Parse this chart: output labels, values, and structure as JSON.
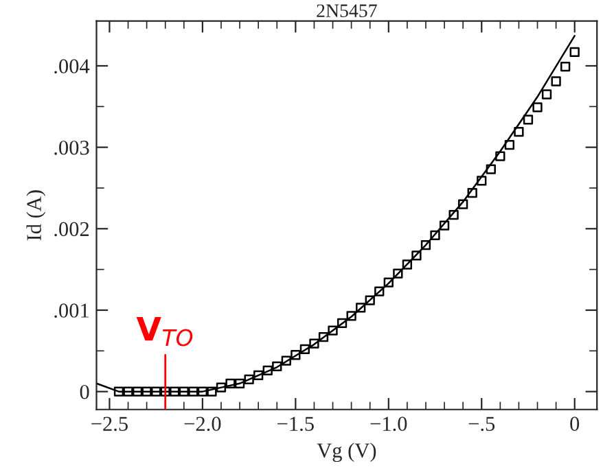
{
  "chart_data": {
    "type": "scatter",
    "title": "2N5457",
    "xlabel": "Vg (V)",
    "ylabel": "Id (A)",
    "xlim": [
      -2.57,
      0.12
    ],
    "ylim": [
      -0.00022,
      0.00455
    ],
    "xticks": [
      {
        "value": -2.5,
        "label": "−2.5"
      },
      {
        "value": -2.0,
        "label": "−2.0"
      },
      {
        "value": -1.5,
        "label": "−1.5"
      },
      {
        "value": -1.0,
        "label": "−1.0"
      },
      {
        "value": -0.5,
        "label": "−.5"
      },
      0
    ],
    "yticks": [
      0,
      {
        "value": 0.001,
        "label": ".001"
      },
      {
        "value": 0.002,
        "label": ".002"
      },
      {
        "value": 0.003,
        "label": ".003"
      },
      {
        "value": 0.004,
        "label": ".004"
      }
    ],
    "grid": false,
    "series": [
      {
        "color": "#000000",
        "marker": "square",
        "x": [
          -2.45,
          -2.4,
          -2.35,
          -2.3,
          -2.25,
          -2.2,
          -2.15,
          -2.1,
          -2.05,
          -2.0,
          -1.95,
          -1.9,
          -1.85,
          -1.8,
          -1.75,
          -1.7,
          -1.65,
          -1.6,
          -1.55,
          -1.5,
          -1.45,
          -1.4,
          -1.35,
          -1.3,
          -1.25,
          -1.2,
          -1.15,
          -1.1,
          -1.05,
          -1.0,
          -0.95,
          -0.9,
          -0.85,
          -0.8,
          -0.75,
          -0.7,
          -0.65,
          -0.6,
          -0.55,
          -0.5,
          -0.45,
          -0.4,
          -0.35,
          -0.3,
          -0.25,
          -0.2,
          -0.15,
          -0.1,
          -0.05,
          0.0
        ],
        "values": [
          0,
          0,
          0,
          0,
          0,
          0,
          0,
          0,
          0,
          0,
          0,
          5e-05,
          0.0001,
          0.0001,
          0.00015,
          0.0002,
          0.00026,
          0.00031,
          0.00038,
          0.00045,
          0.00052,
          0.00059,
          0.00067,
          0.00075,
          0.00084,
          0.00093,
          0.00103,
          0.00112,
          0.00123,
          0.00134,
          0.00145,
          0.00156,
          0.00167,
          0.0018,
          0.00192,
          0.00204,
          0.00217,
          0.0023,
          0.00244,
          0.00259,
          0.00273,
          0.00289,
          0.00303,
          0.00319,
          0.00334,
          0.00349,
          0.00365,
          0.00381,
          0.00399,
          0.00417
        ]
      },
      {
        "type": "line",
        "color": "#000000",
        "marker": "none",
        "line_style": "solid",
        "x": [
          -2.57,
          -2.45,
          -2.3,
          -2.1,
          -2.0,
          -1.8,
          -1.6,
          -1.4,
          -1.2,
          -1.0,
          -0.8,
          -0.6,
          -0.4,
          -0.2,
          0.0
        ],
        "values": [
          0.0001,
          0.0,
          0.0,
          0.0,
          0.0,
          0.0001,
          0.0003,
          0.00058,
          0.00092,
          0.00133,
          0.0018,
          0.00233,
          0.00295,
          0.00362,
          0.00437
        ]
      }
    ],
    "ref_lines": [
      {
        "axis": "x",
        "value": -2.2,
        "label": "V$_{TO}$",
        "color": "#ff0000"
      }
    ]
  }
}
